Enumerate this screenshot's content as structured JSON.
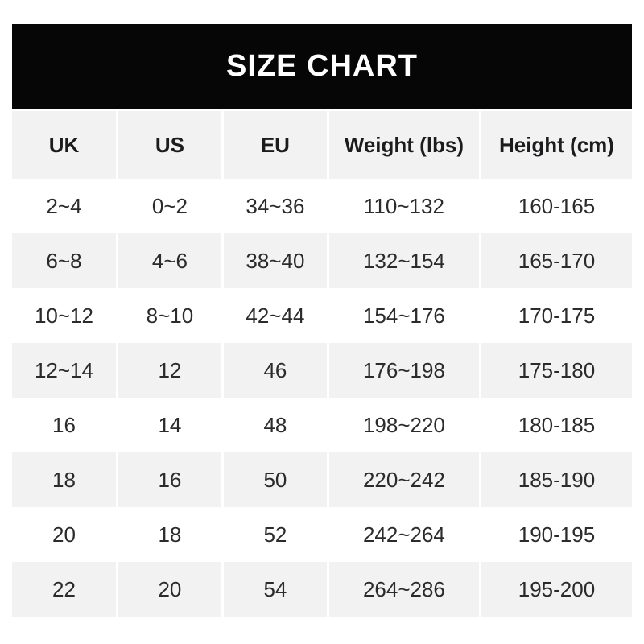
{
  "title": "SIZE CHART",
  "colors": {
    "title_bar_bg": "#060606",
    "title_text": "#ffffff",
    "shaded_row_bg": "#f2f2f3",
    "header_text": "#1c1c1e",
    "body_text": "#2b2b2d",
    "page_bg": "#ffffff"
  },
  "chart_data": {
    "type": "table",
    "title": "SIZE CHART",
    "columns": [
      "UK",
      "US",
      "EU",
      "Weight (lbs)",
      "Height (cm)"
    ],
    "rows": [
      [
        "2~4",
        "0~2",
        "34~36",
        "110~132",
        "160-165"
      ],
      [
        "6~8",
        "4~6",
        "38~40",
        "132~154",
        "165-170"
      ],
      [
        "10~12",
        "8~10",
        "42~44",
        "154~176",
        "170-175"
      ],
      [
        "12~14",
        "12",
        "46",
        "176~198",
        "175-180"
      ],
      [
        "16",
        "14",
        "48",
        "198~220",
        "180-185"
      ],
      [
        "18",
        "16",
        "50",
        "220~242",
        "185-190"
      ],
      [
        "20",
        "18",
        "52",
        "242~264",
        "190-195"
      ],
      [
        "22",
        "20",
        "54",
        "264~286",
        "195-200"
      ]
    ],
    "layout_hints": {
      "shaded_rows": "header and data rows 2,4,6,8",
      "column_gutters": "3px white gaps visible on shaded rows",
      "separator_uk_us_eu_weight": "~",
      "separator_height": "-"
    }
  }
}
